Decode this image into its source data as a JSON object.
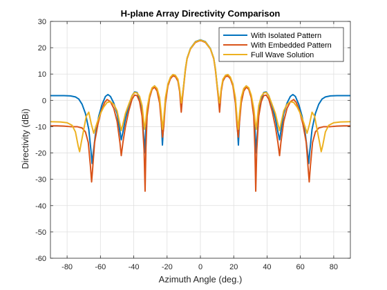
{
  "chart_data": {
    "type": "line",
    "title": "H-plane Array Directivity Comparison",
    "xlabel": "Azimuth Angle (deg.)",
    "ylabel": "Directivity (dBi)",
    "xlim": [
      -90,
      90
    ],
    "ylim": [
      -60,
      30
    ],
    "xticks": [
      -80,
      -60,
      -40,
      -20,
      0,
      20,
      40,
      60,
      80
    ],
    "yticks": [
      -60,
      -50,
      -40,
      -30,
      -20,
      -10,
      0,
      10,
      20,
      30
    ],
    "grid": true,
    "legend_position": "top-right",
    "series": [
      {
        "name": "With Isolated Pattern",
        "color": "#0072BD",
        "points": [
          [
            0,
            23
          ],
          [
            3,
            22.3
          ],
          [
            6,
            19.7
          ],
          [
            8,
            16
          ],
          [
            9,
            12
          ],
          [
            10,
            6
          ],
          [
            11,
            0.5
          ],
          [
            11.5,
            -2
          ],
          [
            12.5,
            4
          ],
          [
            13.5,
            7.5
          ],
          [
            15,
            9.2
          ],
          [
            16.5,
            9.5
          ],
          [
            18,
            8.5
          ],
          [
            19.5,
            6
          ],
          [
            21,
            0.5
          ],
          [
            22,
            -8
          ],
          [
            22.8,
            -17
          ],
          [
            23.5,
            -7
          ],
          [
            24.5,
            0
          ],
          [
            26,
            4
          ],
          [
            27.5,
            5.5
          ],
          [
            29,
            4.5
          ],
          [
            30.5,
            1.5
          ],
          [
            32,
            -4
          ],
          [
            33,
            -14
          ],
          [
            33.5,
            -20
          ],
          [
            34,
            -14
          ],
          [
            35,
            -5
          ],
          [
            36.5,
            0.5
          ],
          [
            38,
            3
          ],
          [
            39.5,
            3.2
          ],
          [
            41,
            1.8
          ],
          [
            43,
            -2
          ],
          [
            45,
            -7
          ],
          [
            46.5,
            -12
          ],
          [
            47.5,
            -15
          ],
          [
            48.5,
            -11
          ],
          [
            50,
            -5
          ],
          [
            52,
            -1
          ],
          [
            54,
            1.5
          ],
          [
            55.5,
            2.2
          ],
          [
            57,
            1.5
          ],
          [
            59,
            -1.5
          ],
          [
            61,
            -6
          ],
          [
            63,
            -13
          ],
          [
            64.5,
            -21
          ],
          [
            65,
            -24
          ],
          [
            65.7,
            -19
          ],
          [
            67,
            -11
          ],
          [
            69,
            -5
          ],
          [
            71,
            -1.5
          ],
          [
            73,
            0.5
          ],
          [
            75,
            1.3
          ],
          [
            78,
            1.7
          ],
          [
            82,
            1.8
          ],
          [
            86,
            1.8
          ],
          [
            90,
            1.8
          ]
        ]
      },
      {
        "name": "With Embedded Pattern",
        "color": "#D95319",
        "points": [
          [
            0,
            22.8
          ],
          [
            3,
            22
          ],
          [
            6,
            19.5
          ],
          [
            8,
            15.8
          ],
          [
            9,
            11.5
          ],
          [
            10,
            5.5
          ],
          [
            11,
            -0.5
          ],
          [
            11.5,
            -4.5
          ],
          [
            12.5,
            3.5
          ],
          [
            13.5,
            7.3
          ],
          [
            15,
            9
          ],
          [
            16.5,
            9.3
          ],
          [
            18,
            8.2
          ],
          [
            19.5,
            5.5
          ],
          [
            21,
            -1
          ],
          [
            22,
            -10
          ],
          [
            22.7,
            -14
          ],
          [
            23.5,
            -8
          ],
          [
            24.5,
            -1
          ],
          [
            26,
            3.5
          ],
          [
            27.5,
            5
          ],
          [
            29,
            4.2
          ],
          [
            30.5,
            1
          ],
          [
            32,
            -6
          ],
          [
            32.7,
            -18
          ],
          [
            33.2,
            -34.5
          ],
          [
            33.8,
            -19
          ],
          [
            35,
            -6
          ],
          [
            36.5,
            -0.5
          ],
          [
            38,
            1.8
          ],
          [
            39.5,
            2
          ],
          [
            41,
            0.5
          ],
          [
            43,
            -4
          ],
          [
            45,
            -10
          ],
          [
            46.5,
            -16
          ],
          [
            47.5,
            -21
          ],
          [
            48.3,
            -16
          ],
          [
            50,
            -8
          ],
          [
            52,
            -3
          ],
          [
            54,
            -0.5
          ],
          [
            56,
            0.3
          ],
          [
            57.5,
            -0.8
          ],
          [
            59.5,
            -4
          ],
          [
            61.5,
            -9
          ],
          [
            63.5,
            -16
          ],
          [
            64.8,
            -27
          ],
          [
            65.3,
            -31
          ],
          [
            66,
            -25
          ],
          [
            67.3,
            -16
          ],
          [
            69,
            -12
          ],
          [
            71,
            -10.5
          ],
          [
            74,
            -10
          ],
          [
            78,
            -10
          ],
          [
            82,
            -9.8
          ],
          [
            86,
            -9.7
          ],
          [
            90,
            -9.7
          ]
        ]
      },
      {
        "name": "Full Wave Solution",
        "color": "#EDB120",
        "points": [
          [
            0,
            22.9
          ],
          [
            3,
            22.2
          ],
          [
            6,
            19.6
          ],
          [
            8,
            16
          ],
          [
            9,
            12
          ],
          [
            10,
            6
          ],
          [
            11,
            1
          ],
          [
            11.5,
            -1
          ],
          [
            12.5,
            4.5
          ],
          [
            13.5,
            8
          ],
          [
            15,
            9.5
          ],
          [
            16.5,
            9.8
          ],
          [
            18,
            8.8
          ],
          [
            19.5,
            6.2
          ],
          [
            21,
            1
          ],
          [
            22,
            -7
          ],
          [
            22.7,
            -11
          ],
          [
            23.5,
            -5
          ],
          [
            24.5,
            1
          ],
          [
            26,
            4.5
          ],
          [
            27.5,
            5.5
          ],
          [
            29,
            4.8
          ],
          [
            30.5,
            2
          ],
          [
            32,
            -3
          ],
          [
            33,
            -9
          ],
          [
            33.5,
            -11
          ],
          [
            34,
            -8
          ],
          [
            35,
            -2
          ],
          [
            36.5,
            1.5
          ],
          [
            38,
            2.8
          ],
          [
            39.5,
            3
          ],
          [
            41,
            1.8
          ],
          [
            43,
            -1.5
          ],
          [
            45,
            -5
          ],
          [
            46.5,
            -9
          ],
          [
            47.5,
            -11.5
          ],
          [
            48.3,
            -9
          ],
          [
            50,
            -4
          ],
          [
            52,
            -1.5
          ],
          [
            54,
            -0.5
          ],
          [
            56,
            -0.8
          ],
          [
            58,
            -2.5
          ],
          [
            60,
            -5
          ],
          [
            62,
            -8.5
          ],
          [
            64,
            -12.5
          ],
          [
            65.5,
            -9
          ],
          [
            67,
            -4.5
          ],
          [
            68.5,
            -6
          ],
          [
            70,
            -11
          ],
          [
            71.5,
            -16
          ],
          [
            72.5,
            -19.5
          ],
          [
            73.3,
            -17.5
          ],
          [
            75,
            -12
          ],
          [
            77,
            -9.5
          ],
          [
            80,
            -8.5
          ],
          [
            84,
            -8.2
          ],
          [
            90,
            -8.1
          ]
        ]
      }
    ]
  }
}
